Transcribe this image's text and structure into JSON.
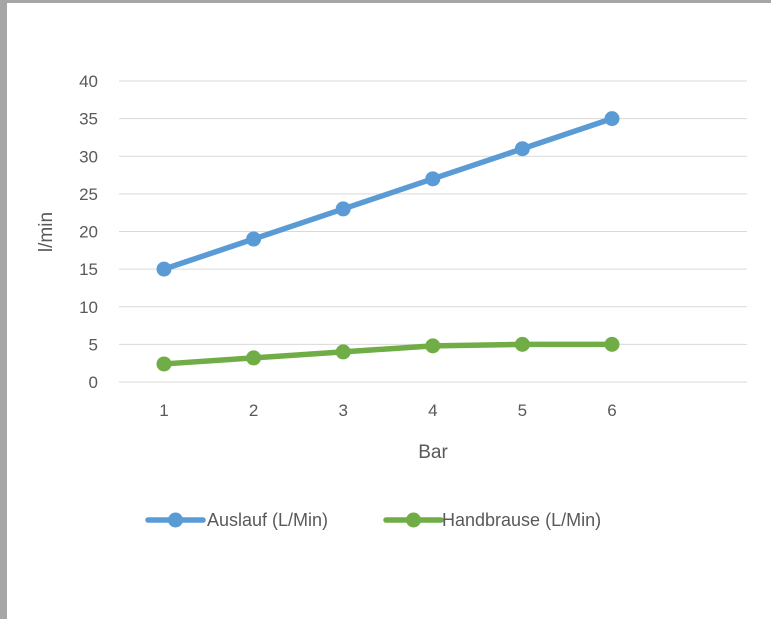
{
  "chart_data": {
    "type": "line",
    "title": "",
    "xlabel": "Bar",
    "ylabel": "l/min",
    "categories": [
      "1",
      "2",
      "3",
      "4",
      "5",
      "6"
    ],
    "ylim": [
      0,
      40
    ],
    "yticks": [
      "0",
      "5",
      "10",
      "15",
      "20",
      "25",
      "30",
      "35",
      "40"
    ],
    "grid": true,
    "legend_position": "bottom",
    "series": [
      {
        "name": "Auslauf (L/Min)",
        "values": [
          15,
          19,
          23,
          27,
          31,
          35
        ],
        "color": "#5b9bd5"
      },
      {
        "name": "Handbrause (L/Min)",
        "values": [
          2.4,
          3.2,
          4,
          4.8,
          5,
          5
        ],
        "color": "#70ad47"
      }
    ]
  }
}
